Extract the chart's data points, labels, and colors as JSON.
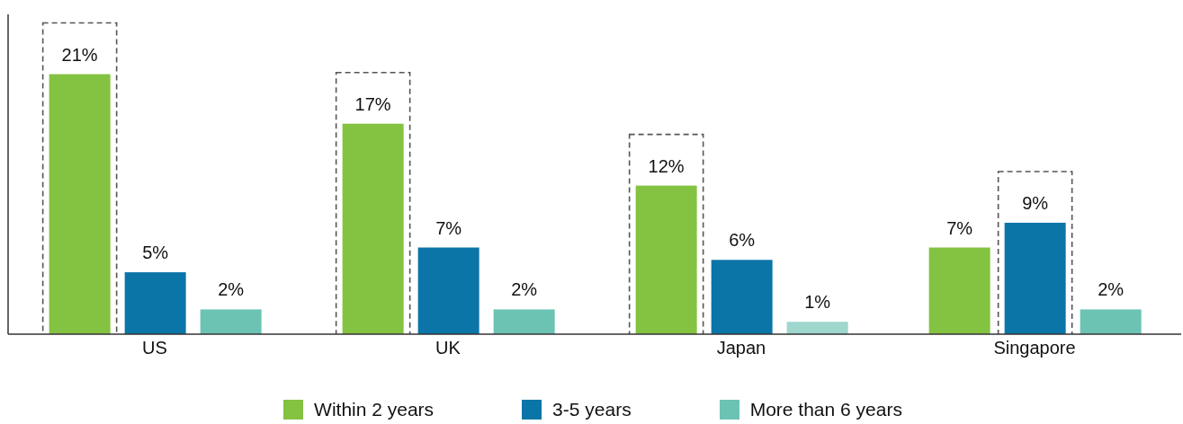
{
  "chart_data": {
    "type": "bar",
    "categories": [
      "US",
      "UK",
      "Japan",
      "Singapore"
    ],
    "series": [
      {
        "name": "Within 2 years",
        "color": "#84c241",
        "values": [
          21,
          17,
          12,
          7
        ],
        "value_labels": [
          "21%",
          "17%",
          "12%",
          "7%"
        ]
      },
      {
        "name": "3-5 years",
        "color": "#0b75a8",
        "values": [
          5,
          7,
          6,
          9
        ],
        "value_labels": [
          "5%",
          "7%",
          "6%",
          "9%"
        ]
      },
      {
        "name": "More than 6 years",
        "color": "#6cc3b4",
        "colors": [
          "#6cc3b4",
          "#6cc3b4",
          "#9fd6ce",
          "#6cc3b4"
        ],
        "values": [
          2,
          2,
          1,
          2
        ],
        "value_labels": [
          "2%",
          "2%",
          "1%",
          "2%"
        ]
      }
    ],
    "grid": false,
    "legend": "bottom"
  }
}
